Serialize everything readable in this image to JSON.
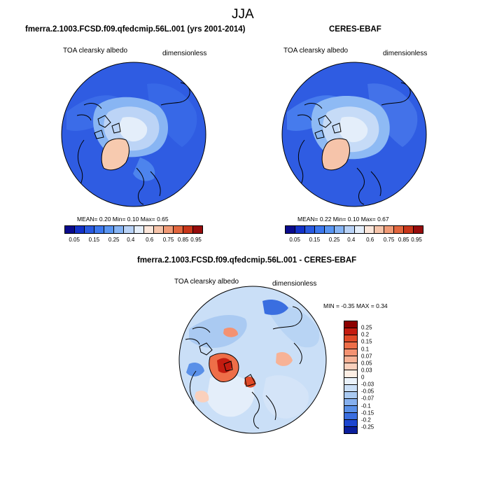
{
  "figure": {
    "title": "JJA"
  },
  "panels": {
    "left": {
      "title": "fmerra.2.1003.FCSD.f09.qfedcmip.56L.001 (yrs 2001-2014)",
      "var_label": "TOA clearsky albedo",
      "units": "dimensionless",
      "stats": "MEAN=   0.20  Min=   0.10  Max=   0.65"
    },
    "right": {
      "title": "CERES-EBAF",
      "var_label": "TOA clearsky albedo",
      "units": "dimensionless",
      "stats": "MEAN=   0.22  Min=   0.10  Max=   0.67"
    },
    "diff": {
      "title": "fmerra.2.1003.FCSD.f09.qfedcmip.56L.001 - CERES-EBAF",
      "var_label": "TOA clearsky albedo",
      "units": "dimensionless",
      "stats": "MIN =  -0.35 MAX =   0.34"
    }
  },
  "colorbars": {
    "albedo": {
      "colors": [
        "#0a0a8c",
        "#1432c8",
        "#2a5ae0",
        "#3d78ee",
        "#5a96f2",
        "#86b4f4",
        "#b8d2f6",
        "#e4eefa",
        "#fbe6da",
        "#f6c4aa",
        "#f09a76",
        "#e2663e",
        "#c8361a",
        "#960c0c"
      ],
      "labels": [
        "0.05",
        "0.15",
        "0.25",
        "0.4",
        "0.6",
        "0.75",
        "0.85",
        "0.95"
      ]
    },
    "difference": {
      "colors": [
        "#8c0000",
        "#c41c10",
        "#e04a28",
        "#ee6e48",
        "#f49272",
        "#f7b296",
        "#fad0bc",
        "#fdeee4",
        "#eaf2fb",
        "#cadff7",
        "#aacaf2",
        "#86b0ee",
        "#5a90e8",
        "#3a6ee0",
        "#1c46d0",
        "#0a1e9c"
      ],
      "labels": [
        "0.25",
        "0.2",
        "0.15",
        "0.1",
        "0.07",
        "0.05",
        "0.03",
        "0",
        "-0.03",
        "-0.05",
        "-0.07",
        "-0.1",
        "-0.15",
        "-0.2",
        "-0.25"
      ]
    }
  }
}
